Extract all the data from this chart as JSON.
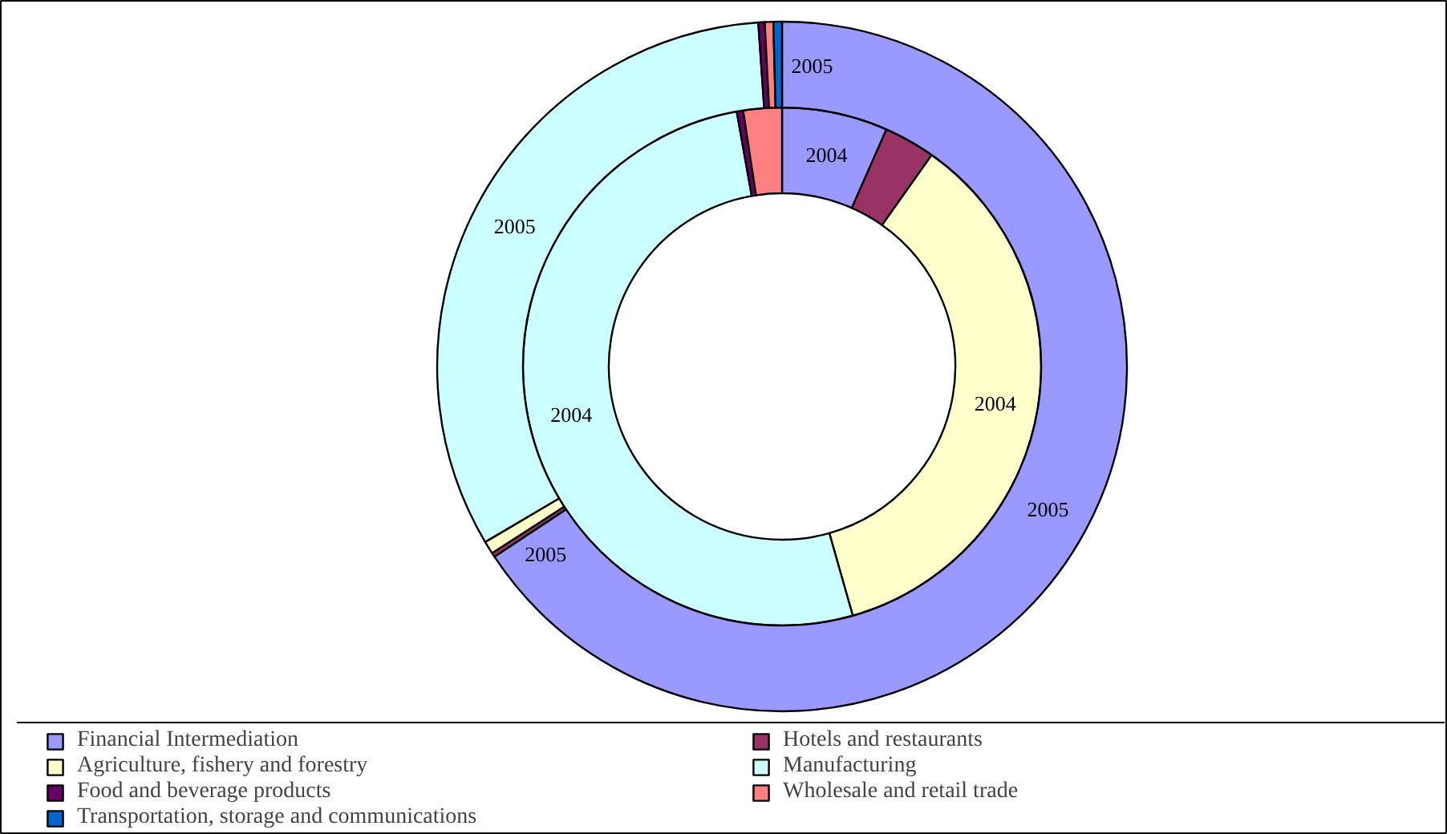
{
  "chart_data": {
    "type": "donut",
    "categories": [
      "Financial Intermediation",
      "Hotels and restaurants",
      "Agriculture, fishery and forestry",
      "Manufacturing",
      "Food and beverage products",
      "Wholesale and retail trade",
      "Transportation, storage and communications"
    ],
    "colors": [
      "#9999ff",
      "#993366",
      "#ffffcc",
      "#ccffff",
      "#660066",
      "#ff8080",
      "#0066cc"
    ],
    "series": [
      {
        "name": "2004",
        "values": [
          6.6,
          3.2,
          35.8,
          51.6,
          0.4,
          2.4,
          0
        ]
      },
      {
        "name": "2005",
        "values": [
          65.7,
          0.2,
          0.6,
          32.4,
          0.3,
          0.4,
          0.4
        ]
      }
    ],
    "annotations": [
      {
        "text": "2005",
        "x": "Transportation, storage and communications"
      },
      {
        "text": "2005",
        "x": "Agriculture, fishery and forestry"
      }
    ],
    "legend": "bottom"
  }
}
